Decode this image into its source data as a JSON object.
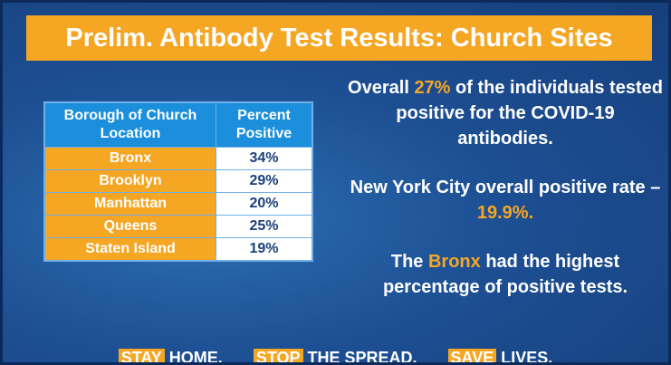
{
  "title": "Prelim. Antibody Test Results: Church Sites",
  "table": {
    "header": [
      "Borough of Church Location",
      "Percent Positive"
    ],
    "rows": [
      [
        "Bronx",
        "34%"
      ],
      [
        "Brooklyn",
        "29%"
      ],
      [
        "Manhattan",
        "20%"
      ],
      [
        "Queens",
        "25%"
      ],
      [
        "Staten Island",
        "19%"
      ]
    ]
  },
  "statements": [
    [
      {
        "text": "Overall "
      },
      {
        "text": "27%",
        "color": "#f5a623"
      },
      {
        "text": " of the individuals tested positive for the COVID-19 antibodies."
      }
    ],
    [
      {
        "text": "New York City overall positive rate – "
      },
      {
        "text": "19.9%.",
        "color": "#f5a623"
      }
    ],
    [
      {
        "text": "The "
      },
      {
        "text": "Bronx",
        "color": "#f5a623"
      },
      {
        "text": " had the highest percentage of positive tests."
      }
    ]
  ],
  "slogan": [
    [
      {
        "text": "STAY",
        "background": "#f5a623"
      },
      {
        "text": " HOME."
      }
    ],
    [
      {
        "text": "STOP",
        "background": "#f5a623"
      },
      {
        "text": " THE SPREAD."
      }
    ],
    [
      {
        "text": "SAVE",
        "background": "#f5a623"
      },
      {
        "text": " LIVES."
      }
    ]
  ]
}
